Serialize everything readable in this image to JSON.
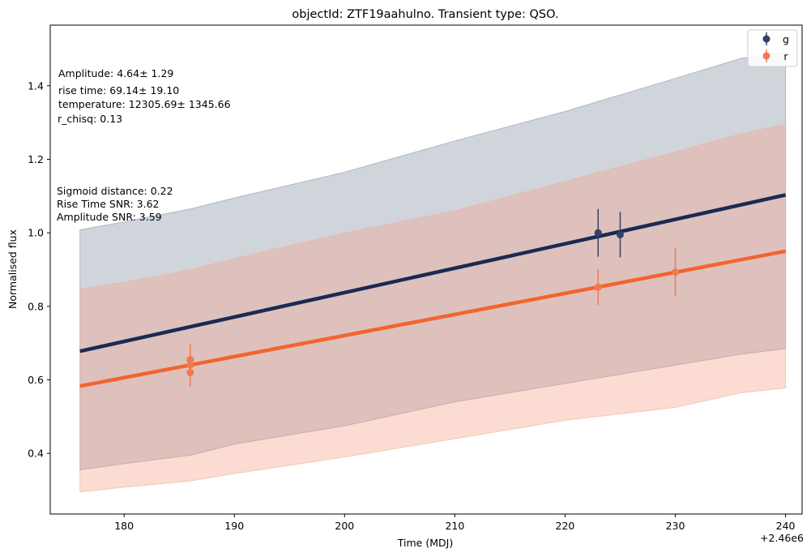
{
  "chart_data": {
    "type": "line",
    "title": "objectId: ZTF19aahulno. Transient type: QSO.",
    "xlabel": "Time (MDJ)",
    "ylabel": "Normalised flux",
    "x_offset_label": "+2.46e6",
    "xlim": [
      173.3,
      241.5
    ],
    "ylim": [
      0.235,
      1.565
    ],
    "xticks": [
      180,
      190,
      200,
      210,
      220,
      230,
      240
    ],
    "yticks": [
      0.4,
      0.6,
      0.8,
      1.0,
      1.2,
      1.4
    ],
    "xtick_labels": [
      "180",
      "190",
      "200",
      "210",
      "220",
      "230",
      "240"
    ],
    "ytick_labels": [
      "0.4",
      "0.6",
      "0.8",
      "1.0",
      "1.2",
      "1.4"
    ],
    "grid": false,
    "legend_position": "top-right",
    "series": [
      {
        "name": "g",
        "color": "#1b2a52",
        "line": {
          "x": [
            176,
            240
          ],
          "y": [
            0.678,
            1.103
          ]
        },
        "band": {
          "x": [
            176,
            180,
            186,
            190,
            200,
            210,
            220,
            230,
            236,
            240
          ],
          "upper": [
            1.008,
            1.03,
            1.065,
            1.095,
            1.165,
            1.25,
            1.33,
            1.42,
            1.475,
            1.49
          ],
          "lower": [
            0.355,
            0.372,
            0.395,
            0.425,
            0.475,
            0.54,
            0.59,
            0.64,
            0.67,
            0.685
          ]
        },
        "points": [
          {
            "x": 223.0,
            "y": 1.0,
            "err": 0.065
          },
          {
            "x": 225.0,
            "y": 0.995,
            "err": 0.062
          }
        ]
      },
      {
        "name": "r",
        "color": "#f26430",
        "line": {
          "x": [
            176,
            240
          ],
          "y": [
            0.583,
            0.95
          ]
        },
        "band": {
          "x": [
            176,
            180,
            186,
            190,
            200,
            210,
            220,
            230,
            236,
            240
          ],
          "upper": [
            0.848,
            0.865,
            0.9,
            0.93,
            1.0,
            1.06,
            1.14,
            1.22,
            1.27,
            1.295
          ],
          "lower": [
            0.295,
            0.308,
            0.325,
            0.345,
            0.39,
            0.44,
            0.49,
            0.525,
            0.565,
            0.578
          ]
        },
        "points": [
          {
            "x": 186.0,
            "y": 0.655,
            "err": 0.042
          },
          {
            "x": 186.0,
            "y": 0.64,
            "err": 0.04
          },
          {
            "x": 186.0,
            "y": 0.62,
            "err": 0.038
          },
          {
            "x": 223.0,
            "y": 0.852,
            "err": 0.048
          },
          {
            "x": 230.0,
            "y": 0.893,
            "err": 0.065
          }
        ]
      }
    ]
  },
  "annotations": {
    "amplitude": "Amplitude: 4.64± 1.29",
    "rise_time": "rise time: 69.14± 19.10",
    "temperature": "temperature: 12305.69± 1345.66",
    "r_chisq": "r_chisq: 0.13",
    "sigmoid_distance": "Sigmoid distance: 0.22",
    "rise_time_snr": "Rise Time SNR: 3.62",
    "amplitude_snr": "Amplitude SNR: 3.59"
  },
  "legend": [
    {
      "label": "g",
      "color": "#34406a"
    },
    {
      "label": "r",
      "color": "#f07a50"
    }
  ]
}
